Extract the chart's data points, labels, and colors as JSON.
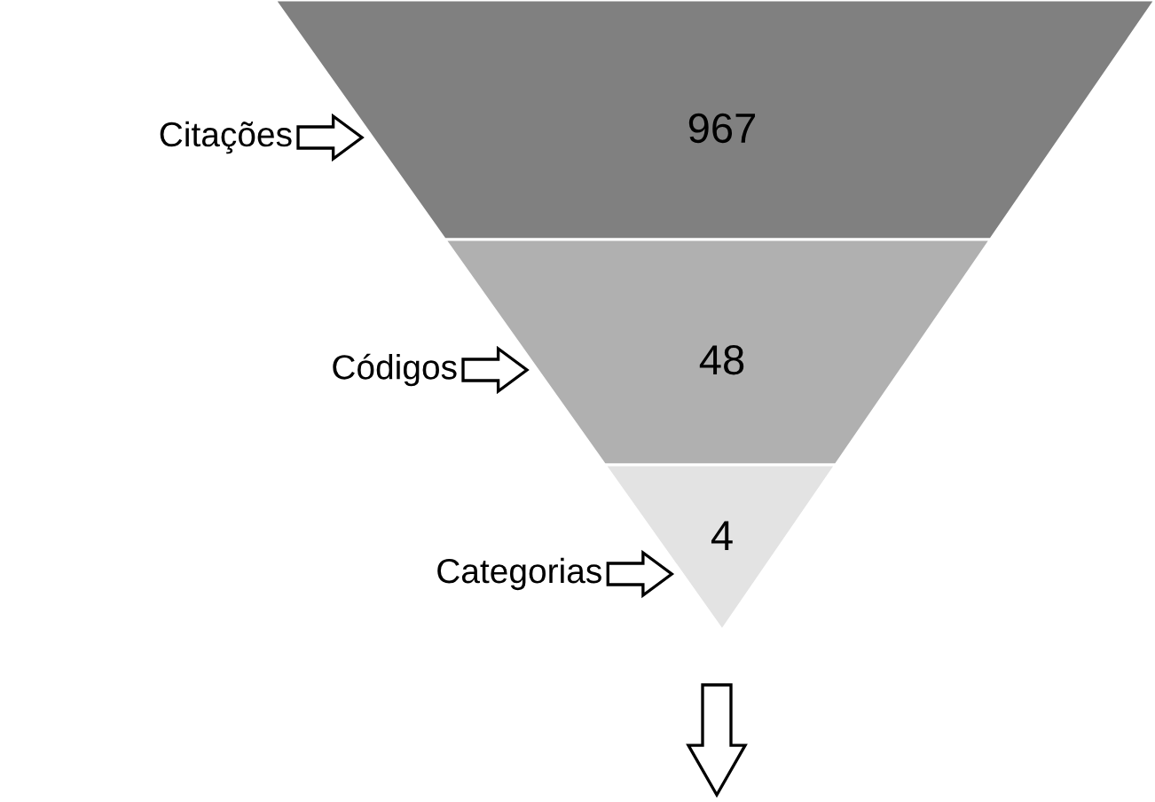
{
  "chart_data": {
    "type": "other",
    "categories": [
      "Citações",
      "Códigos",
      "Categorias"
    ],
    "values": [
      967,
      48,
      4
    ],
    "colors": [
      "#808080",
      "#b0b0b0",
      "#e3e3e3"
    ],
    "data_labels": true
  }
}
